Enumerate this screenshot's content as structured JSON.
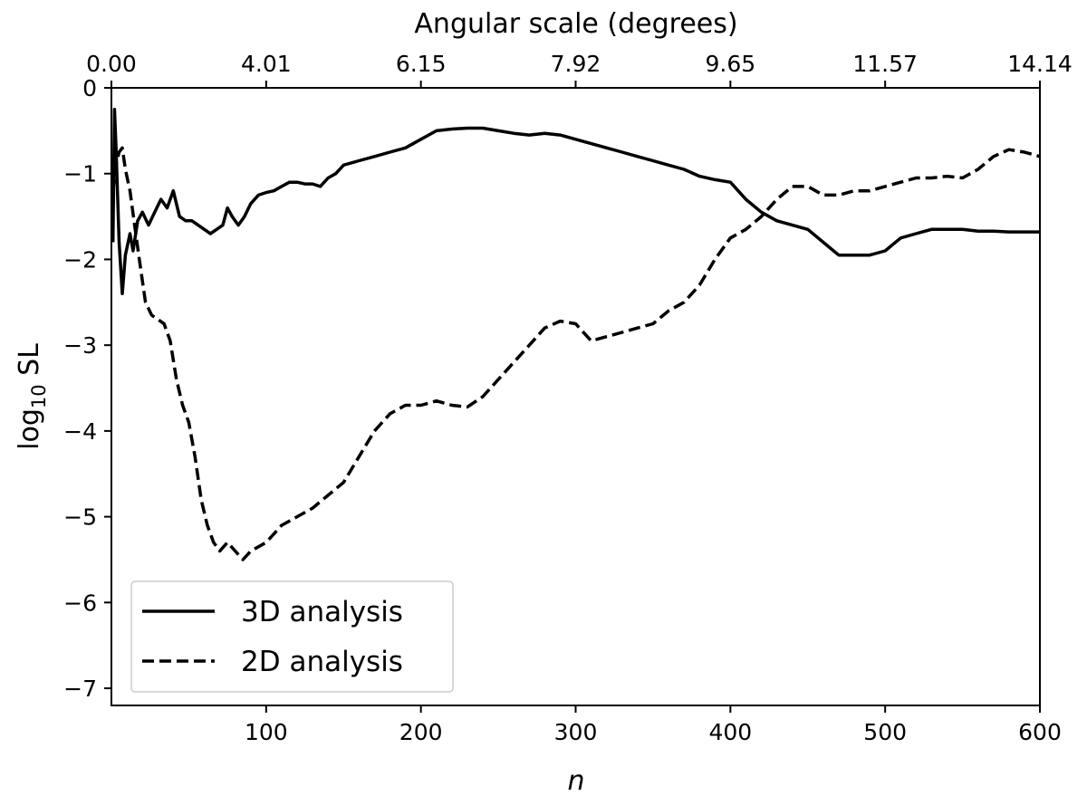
{
  "chart_data": {
    "type": "line",
    "xlabel": "n",
    "ylabel_base": "log",
    "ylabel_sub": "10",
    "ylabel_tail": " SL",
    "top_axis_label": "Angular scale (degrees)",
    "xlim": [
      0,
      600
    ],
    "ylim": [
      -7.2,
      0
    ],
    "x_ticks": [
      {
        "value": 100,
        "label": "100"
      },
      {
        "value": 200,
        "label": "200"
      },
      {
        "value": 300,
        "label": "300"
      },
      {
        "value": 400,
        "label": "400"
      },
      {
        "value": 500,
        "label": "500"
      },
      {
        "value": 600,
        "label": "600"
      }
    ],
    "y_ticks": [
      {
        "value": 0,
        "label": "0"
      },
      {
        "value": -1,
        "label": "−1"
      },
      {
        "value": -2,
        "label": "−2"
      },
      {
        "value": -3,
        "label": "−3"
      },
      {
        "value": -4,
        "label": "−4"
      },
      {
        "value": -5,
        "label": "−5"
      },
      {
        "value": -6,
        "label": "−6"
      },
      {
        "value": -7,
        "label": "−7"
      }
    ],
    "top_ticks": [
      {
        "value": 0,
        "label": "0.00"
      },
      {
        "value": 100,
        "label": "4.01"
      },
      {
        "value": 200,
        "label": "6.15"
      },
      {
        "value": 300,
        "label": "7.92"
      },
      {
        "value": 400,
        "label": "9.65"
      },
      {
        "value": 500,
        "label": "11.57"
      },
      {
        "value": 600,
        "label": "14.14"
      }
    ],
    "grid": false,
    "legend_position": "bottom-left",
    "series": [
      {
        "name": "3D analysis",
        "style": "solid",
        "color": "#000000",
        "points": [
          [
            1,
            -1.8
          ],
          [
            2,
            -0.25
          ],
          [
            3,
            -0.7
          ],
          [
            5,
            -1.8
          ],
          [
            7,
            -2.4
          ],
          [
            9,
            -1.95
          ],
          [
            12,
            -1.7
          ],
          [
            14,
            -1.9
          ],
          [
            17,
            -1.55
          ],
          [
            20,
            -1.45
          ],
          [
            24,
            -1.6
          ],
          [
            28,
            -1.45
          ],
          [
            32,
            -1.3
          ],
          [
            36,
            -1.4
          ],
          [
            40,
            -1.2
          ],
          [
            44,
            -1.5
          ],
          [
            48,
            -1.55
          ],
          [
            52,
            -1.55
          ],
          [
            56,
            -1.6
          ],
          [
            60,
            -1.65
          ],
          [
            64,
            -1.7
          ],
          [
            68,
            -1.65
          ],
          [
            72,
            -1.6
          ],
          [
            75,
            -1.4
          ],
          [
            78,
            -1.5
          ],
          [
            82,
            -1.6
          ],
          [
            86,
            -1.5
          ],
          [
            90,
            -1.35
          ],
          [
            95,
            -1.25
          ],
          [
            100,
            -1.22
          ],
          [
            105,
            -1.2
          ],
          [
            110,
            -1.15
          ],
          [
            115,
            -1.1
          ],
          [
            120,
            -1.1
          ],
          [
            125,
            -1.12
          ],
          [
            130,
            -1.12
          ],
          [
            135,
            -1.15
          ],
          [
            140,
            -1.05
          ],
          [
            145,
            -1.0
          ],
          [
            150,
            -0.9
          ],
          [
            160,
            -0.85
          ],
          [
            170,
            -0.8
          ],
          [
            180,
            -0.75
          ],
          [
            190,
            -0.7
          ],
          [
            200,
            -0.6
          ],
          [
            210,
            -0.5
          ],
          [
            220,
            -0.48
          ],
          [
            230,
            -0.47
          ],
          [
            240,
            -0.47
          ],
          [
            250,
            -0.5
          ],
          [
            260,
            -0.53
          ],
          [
            270,
            -0.55
          ],
          [
            280,
            -0.53
          ],
          [
            290,
            -0.55
          ],
          [
            300,
            -0.6
          ],
          [
            310,
            -0.65
          ],
          [
            320,
            -0.7
          ],
          [
            330,
            -0.75
          ],
          [
            340,
            -0.8
          ],
          [
            350,
            -0.85
          ],
          [
            360,
            -0.9
          ],
          [
            370,
            -0.95
          ],
          [
            380,
            -1.03
          ],
          [
            390,
            -1.07
          ],
          [
            400,
            -1.1
          ],
          [
            410,
            -1.3
          ],
          [
            420,
            -1.45
          ],
          [
            430,
            -1.55
          ],
          [
            440,
            -1.6
          ],
          [
            450,
            -1.65
          ],
          [
            460,
            -1.8
          ],
          [
            470,
            -1.95
          ],
          [
            480,
            -1.95
          ],
          [
            490,
            -1.95
          ],
          [
            500,
            -1.9
          ],
          [
            510,
            -1.75
          ],
          [
            520,
            -1.7
          ],
          [
            530,
            -1.65
          ],
          [
            540,
            -1.65
          ],
          [
            550,
            -1.65
          ],
          [
            560,
            -1.67
          ],
          [
            570,
            -1.67
          ],
          [
            580,
            -1.68
          ],
          [
            590,
            -1.68
          ],
          [
            600,
            -1.68
          ]
        ]
      },
      {
        "name": "2D analysis",
        "style": "dashed",
        "color": "#000000",
        "points": [
          [
            1,
            -1.2
          ],
          [
            3,
            -0.9
          ],
          [
            5,
            -0.75
          ],
          [
            7,
            -0.7
          ],
          [
            9,
            -0.95
          ],
          [
            12,
            -1.2
          ],
          [
            15,
            -1.6
          ],
          [
            18,
            -2.0
          ],
          [
            22,
            -2.5
          ],
          [
            26,
            -2.65
          ],
          [
            30,
            -2.7
          ],
          [
            34,
            -2.75
          ],
          [
            38,
            -2.95
          ],
          [
            42,
            -3.4
          ],
          [
            46,
            -3.7
          ],
          [
            50,
            -3.9
          ],
          [
            54,
            -4.3
          ],
          [
            58,
            -4.8
          ],
          [
            62,
            -5.1
          ],
          [
            66,
            -5.3
          ],
          [
            70,
            -5.4
          ],
          [
            75,
            -5.3
          ],
          [
            80,
            -5.4
          ],
          [
            85,
            -5.5
          ],
          [
            90,
            -5.4
          ],
          [
            95,
            -5.35
          ],
          [
            100,
            -5.3
          ],
          [
            110,
            -5.1
          ],
          [
            120,
            -5.0
          ],
          [
            130,
            -4.9
          ],
          [
            140,
            -4.75
          ],
          [
            150,
            -4.6
          ],
          [
            160,
            -4.3
          ],
          [
            170,
            -4.0
          ],
          [
            180,
            -3.8
          ],
          [
            190,
            -3.7
          ],
          [
            200,
            -3.7
          ],
          [
            210,
            -3.65
          ],
          [
            220,
            -3.7
          ],
          [
            230,
            -3.72
          ],
          [
            240,
            -3.6
          ],
          [
            250,
            -3.4
          ],
          [
            260,
            -3.2
          ],
          [
            270,
            -3.0
          ],
          [
            280,
            -2.8
          ],
          [
            290,
            -2.72
          ],
          [
            300,
            -2.75
          ],
          [
            310,
            -2.95
          ],
          [
            320,
            -2.9
          ],
          [
            330,
            -2.85
          ],
          [
            340,
            -2.8
          ],
          [
            350,
            -2.75
          ],
          [
            360,
            -2.6
          ],
          [
            370,
            -2.5
          ],
          [
            380,
            -2.3
          ],
          [
            390,
            -2.0
          ],
          [
            400,
            -1.75
          ],
          [
            410,
            -1.65
          ],
          [
            420,
            -1.5
          ],
          [
            430,
            -1.3
          ],
          [
            440,
            -1.15
          ],
          [
            450,
            -1.15
          ],
          [
            460,
            -1.25
          ],
          [
            470,
            -1.25
          ],
          [
            480,
            -1.2
          ],
          [
            490,
            -1.2
          ],
          [
            500,
            -1.15
          ],
          [
            510,
            -1.1
          ],
          [
            520,
            -1.05
          ],
          [
            530,
            -1.05
          ],
          [
            540,
            -1.03
          ],
          [
            550,
            -1.05
          ],
          [
            560,
            -0.95
          ],
          [
            570,
            -0.8
          ],
          [
            580,
            -0.72
          ],
          [
            590,
            -0.75
          ],
          [
            600,
            -0.8
          ]
        ]
      }
    ]
  }
}
